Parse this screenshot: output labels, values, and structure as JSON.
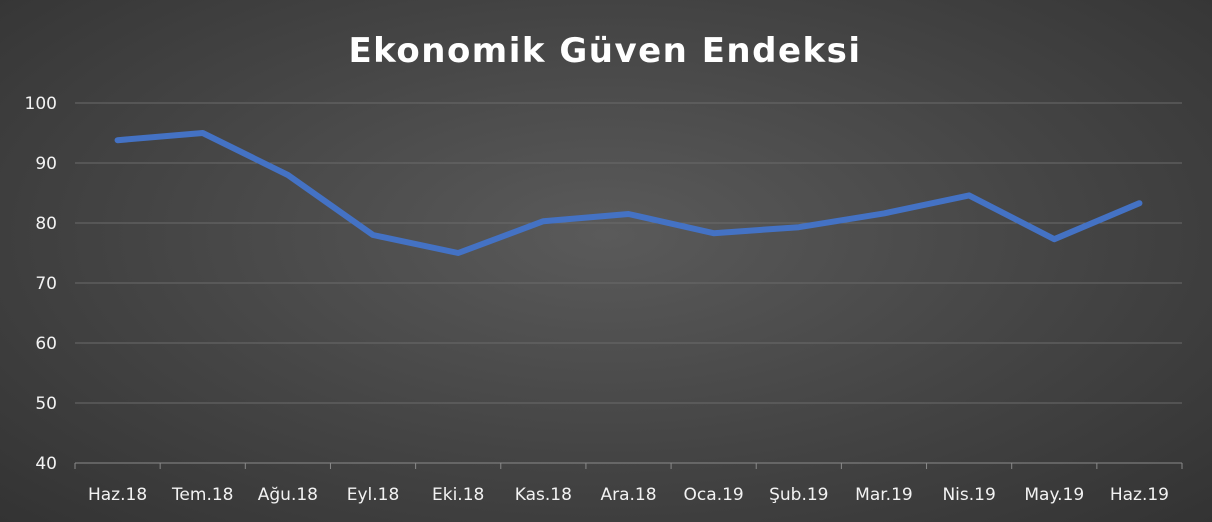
{
  "chart_data": {
    "type": "line",
    "title": "Ekonomik Güven Endeksi",
    "xlabel": "",
    "ylabel": "",
    "categories": [
      "Haz.18",
      "Tem.18",
      "Ağu.18",
      "Eyl.18",
      "Eki.18",
      "Kas.18",
      "Ara.18",
      "Oca.19",
      "Şub.19",
      "Mar.19",
      "Nis.19",
      "May.19",
      "Haz.19"
    ],
    "yticks": [
      "40",
      "50",
      "60",
      "70",
      "80",
      "90",
      "100"
    ],
    "ylim": [
      40,
      100
    ],
    "grid": true,
    "legend": "none",
    "series": [
      {
        "color": "#4472c4",
        "values": [
          93.8,
          95.0,
          88.0,
          78.0,
          75.0,
          80.3,
          81.5,
          78.3,
          79.3,
          81.6,
          84.6,
          77.3,
          83.3
        ]
      }
    ]
  }
}
